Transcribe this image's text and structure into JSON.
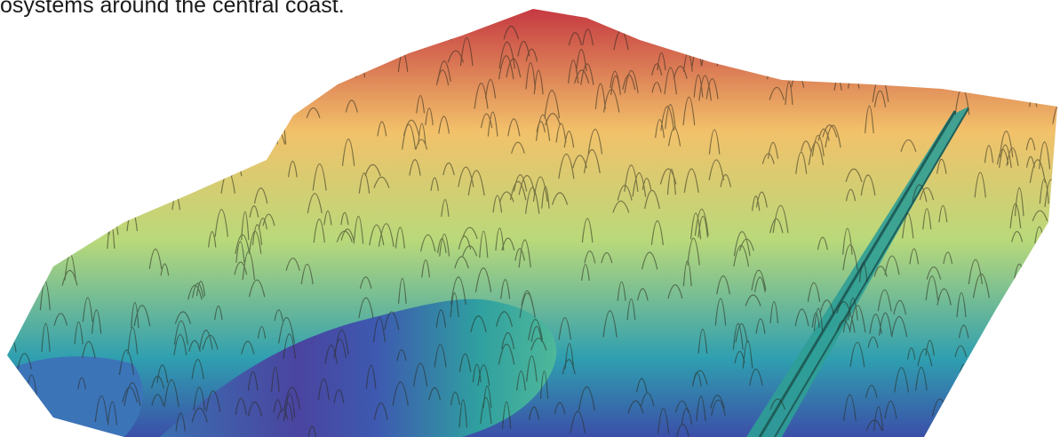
{
  "caption": "osystems around the central coast.",
  "figure": {
    "icon": "lidar-forest-canopy-3d-icon",
    "colors": {
      "low": "#3b4fa8",
      "low_mid": "#2f9fb0",
      "mid": "#b9d97a",
      "high_mid": "#f2c16a",
      "high": "#c2303f"
    }
  }
}
